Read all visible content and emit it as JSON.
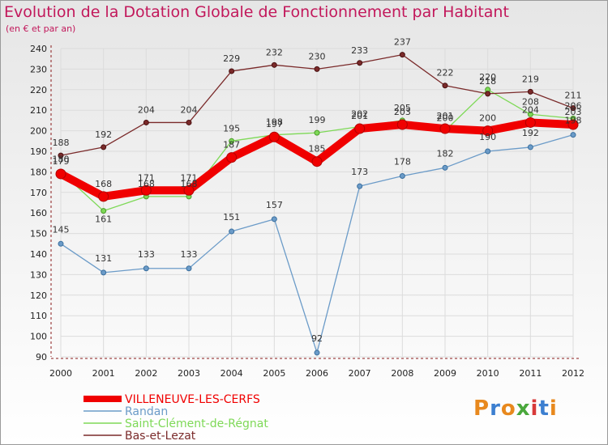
{
  "title": "Evolution de la Dotation Globale de Fonctionnement par Habitant",
  "subtitle": "(en € et par an)",
  "logo": {
    "text": "Proxiti",
    "colors": [
      "#e8891e",
      "#3c7fd0",
      "#e8891e",
      "#4aa83c",
      "#d83a3a",
      "#3c7fd0",
      "#e8891e"
    ]
  },
  "chart_data": {
    "type": "line",
    "title": "Evolution de la Dotation Globale de Fonctionnement par Habitant",
    "xlabel": "",
    "ylabel": "(en € et par an)",
    "x": [
      2000,
      2001,
      2002,
      2003,
      2004,
      2005,
      2006,
      2007,
      2008,
      2009,
      2010,
      2011,
      2012
    ],
    "ylim": [
      90,
      240
    ],
    "yticks": [
      90,
      100,
      110,
      120,
      130,
      140,
      150,
      160,
      170,
      180,
      190,
      200,
      210,
      220,
      230,
      240
    ],
    "grid": true,
    "legend": "bottom-left",
    "series": [
      {
        "name": "VILLENEUVE-LES-CERFS",
        "color": "#f00000",
        "values": [
          179,
          168,
          171,
          171,
          187,
          197,
          185,
          201,
          203,
          201,
          200,
          204,
          203
        ]
      },
      {
        "name": "Randan",
        "color": "#6b9bc8",
        "values": [
          145,
          131,
          133,
          133,
          151,
          157,
          92,
          173,
          178,
          182,
          190,
          192,
          198
        ]
      },
      {
        "name": "Saint-Clément-de-Régnat",
        "color": "#7ed957",
        "values": [
          180,
          161,
          168,
          168,
          195,
          198,
          199,
          202,
          205,
          200,
          220,
          208,
          206
        ]
      },
      {
        "name": "Bas-et-Lezat",
        "color": "#7a2a2a",
        "values": [
          188,
          192,
          204,
          204,
          229,
          232,
          230,
          233,
          237,
          222,
          218,
          219,
          211
        ]
      }
    ]
  }
}
